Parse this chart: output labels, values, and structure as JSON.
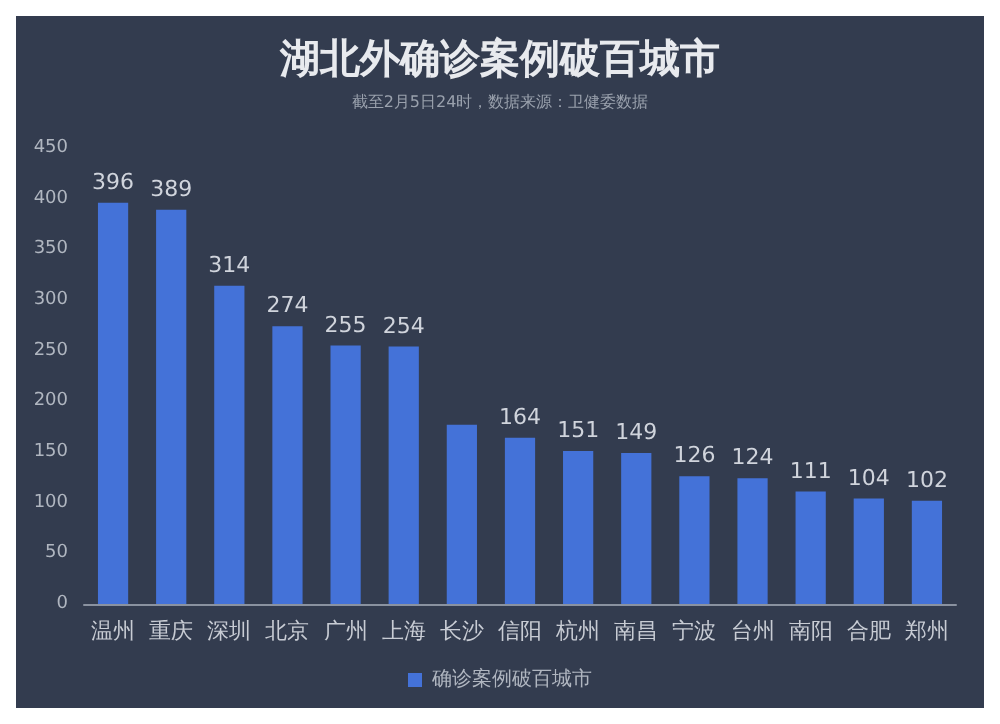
{
  "chart_data": {
    "type": "bar",
    "title": "湖北外确诊案例破百城市",
    "subtitle": "截至2月5日24时，数据来源：卫健委数据",
    "categories": [
      "温州",
      "重庆",
      "深圳",
      "北京",
      "广州",
      "上海",
      "长沙",
      "信阳",
      "杭州",
      "南昌",
      "宁波",
      "台州",
      "南阳",
      "合肥",
      "郑州"
    ],
    "series": [
      {
        "name": "确诊案例破百城市",
        "color": "#4472d8",
        "values": [
          396,
          389,
          314,
          274,
          255,
          254,
          177,
          164,
          151,
          149,
          126,
          124,
          111,
          104,
          102
        ],
        "value_labels": [
          "396",
          "389",
          "314",
          "274",
          "255",
          "254",
          null,
          "164",
          "151",
          "149",
          "126",
          "124",
          "111",
          "104",
          "102"
        ]
      }
    ],
    "ylim": [
      0,
      450
    ],
    "yticks": [
      0,
      50,
      100,
      150,
      200,
      250,
      300,
      350,
      400,
      450
    ],
    "grid": false,
    "legend": "bottom"
  }
}
